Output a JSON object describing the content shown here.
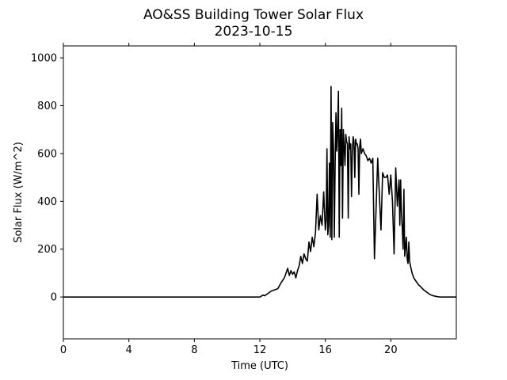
{
  "chart_data": {
    "type": "line",
    "title": "AO&SS Building Tower Solar Flux",
    "subtitle": "2023-10-15",
    "xlabel": "Time (UTC)",
    "ylabel": "Solar Flux (W/m^2)",
    "xlim": [
      0,
      24
    ],
    "ylim": [
      -175,
      1050
    ],
    "xticks": [
      0,
      4,
      8,
      12,
      16,
      20
    ],
    "yticks": [
      0,
      200,
      400,
      600,
      800,
      1000
    ],
    "grid": false,
    "line_color": "#000000",
    "series": [
      {
        "x": [
          0,
          12.0,
          12.2,
          12.3,
          12.5,
          12.7,
          12.9,
          13.1,
          13.3,
          13.5,
          13.7,
          13.8,
          13.9,
          14.0,
          14.1,
          14.2,
          14.3,
          14.4,
          14.5,
          14.6,
          14.7,
          14.8,
          14.9,
          15.0,
          15.1,
          15.2,
          15.3,
          15.4,
          15.5,
          15.6,
          15.7,
          15.8,
          15.9,
          16.0,
          16.05,
          16.1,
          16.15,
          16.2,
          16.25,
          16.3,
          16.35,
          16.4,
          16.45,
          16.5,
          16.55,
          16.6,
          16.65,
          16.7,
          16.75,
          16.8,
          16.85,
          16.9,
          16.95,
          17.0,
          17.05,
          17.1,
          17.15,
          17.2,
          17.25,
          17.3,
          17.35,
          17.4,
          17.45,
          17.5,
          17.55,
          17.6,
          17.65,
          17.7,
          17.75,
          17.8,
          17.85,
          17.9,
          17.95,
          18.0,
          18.05,
          18.1,
          18.15,
          18.2,
          18.3,
          18.4,
          18.5,
          18.6,
          18.7,
          18.8,
          18.9,
          19.0,
          19.2,
          19.4,
          19.5,
          19.6,
          19.7,
          19.8,
          19.9,
          20.0,
          20.1,
          20.2,
          20.3,
          20.4,
          20.5,
          20.55,
          20.6,
          20.65,
          20.7,
          20.75,
          20.8,
          20.85,
          20.9,
          20.95,
          21.0,
          21.05,
          21.1,
          21.15,
          21.2,
          21.3,
          21.4,
          21.5,
          21.6,
          21.7,
          21.8,
          22.0,
          22.2,
          22.4,
          22.6,
          22.8,
          23.0,
          23.2,
          23.4,
          23.6,
          24.0
        ],
        "y": [
          0,
          0,
          8,
          5,
          15,
          25,
          30,
          35,
          60,
          80,
          120,
          90,
          110,
          95,
          105,
          80,
          110,
          130,
          170,
          140,
          180,
          160,
          150,
          230,
          190,
          250,
          210,
          270,
          430,
          280,
          340,
          300,
          440,
          280,
          320,
          620,
          260,
          300,
          560,
          250,
          880,
          240,
          730,
          620,
          250,
          560,
          770,
          610,
          700,
          860,
          250,
          700,
          550,
          790,
          330,
          700,
          630,
          550,
          680,
          650,
          640,
          330,
          670,
          620,
          640,
          420,
          610,
          670,
          650,
          500,
          660,
          640,
          640,
          620,
          430,
          630,
          660,
          600,
          620,
          600,
          590,
          570,
          580,
          560,
          580,
          160,
          580,
          280,
          520,
          500,
          500,
          510,
          430,
          510,
          400,
          180,
          540,
          380,
          490,
          300,
          490,
          350,
          290,
          200,
          450,
          170,
          210,
          250,
          160,
          140,
          230,
          150,
          130,
          100,
          80,
          70,
          60,
          50,
          45,
          30,
          20,
          10,
          5,
          2,
          0,
          0,
          0,
          0,
          0
        ]
      }
    ]
  }
}
